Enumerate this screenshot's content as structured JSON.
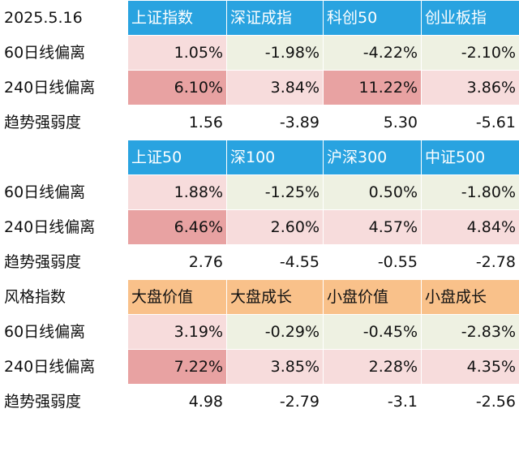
{
  "date": "2025.5.16",
  "sections": [
    {
      "header_label": "",
      "header_bg": "blue",
      "columns": [
        "上证指数",
        "深证成指",
        "科创50",
        "创业板指"
      ],
      "rows": [
        {
          "label": "60日线偏离",
          "values": [
            "1.05%",
            "-1.98%",
            "-4.22%",
            "-2.10%"
          ]
        },
        {
          "label": "240日线偏离",
          "values": [
            "6.10%",
            "3.84%",
            "11.22%",
            "3.86%"
          ]
        },
        {
          "label": "趋势强弱度",
          "values": [
            "1.56",
            "-3.89",
            "5.30",
            "-5.61"
          ]
        }
      ]
    },
    {
      "header_label": "",
      "header_bg": "blue",
      "columns": [
        "上证50",
        "深100",
        "沪深300",
        "中证500"
      ],
      "rows": [
        {
          "label": "60日线偏离",
          "values": [
            "1.88%",
            "-1.25%",
            "0.50%",
            "-1.80%"
          ]
        },
        {
          "label": "240日线偏离",
          "values": [
            "6.46%",
            "2.60%",
            "4.57%",
            "4.84%"
          ]
        },
        {
          "label": "趋势强弱度",
          "values": [
            "2.76",
            "-4.55",
            "-0.55",
            "-2.78"
          ]
        }
      ]
    },
    {
      "header_label": "风格指数",
      "header_bg": "orange",
      "columns": [
        "大盘价值",
        "大盘成长",
        "小盘价值",
        "小盘成长"
      ],
      "rows": [
        {
          "label": "60日线偏离",
          "values": [
            "3.19%",
            "-0.29%",
            "-0.45%",
            "-2.83%"
          ]
        },
        {
          "label": "240日线偏离",
          "values": [
            "7.22%",
            "3.85%",
            "2.28%",
            "4.35%"
          ]
        },
        {
          "label": "趋势强弱度",
          "values": [
            "4.98",
            "-2.79",
            "-3.1",
            "-2.56"
          ]
        }
      ]
    }
  ],
  "colors": {
    "header_blue": "#29a3e0",
    "header_orange": "#f9c18a",
    "cell_pink_light": "#f7dcdc",
    "cell_pink_dark": "#e8a2a2",
    "cell_green_light": "#eef1e2",
    "negative_text": "#c0392b"
  }
}
